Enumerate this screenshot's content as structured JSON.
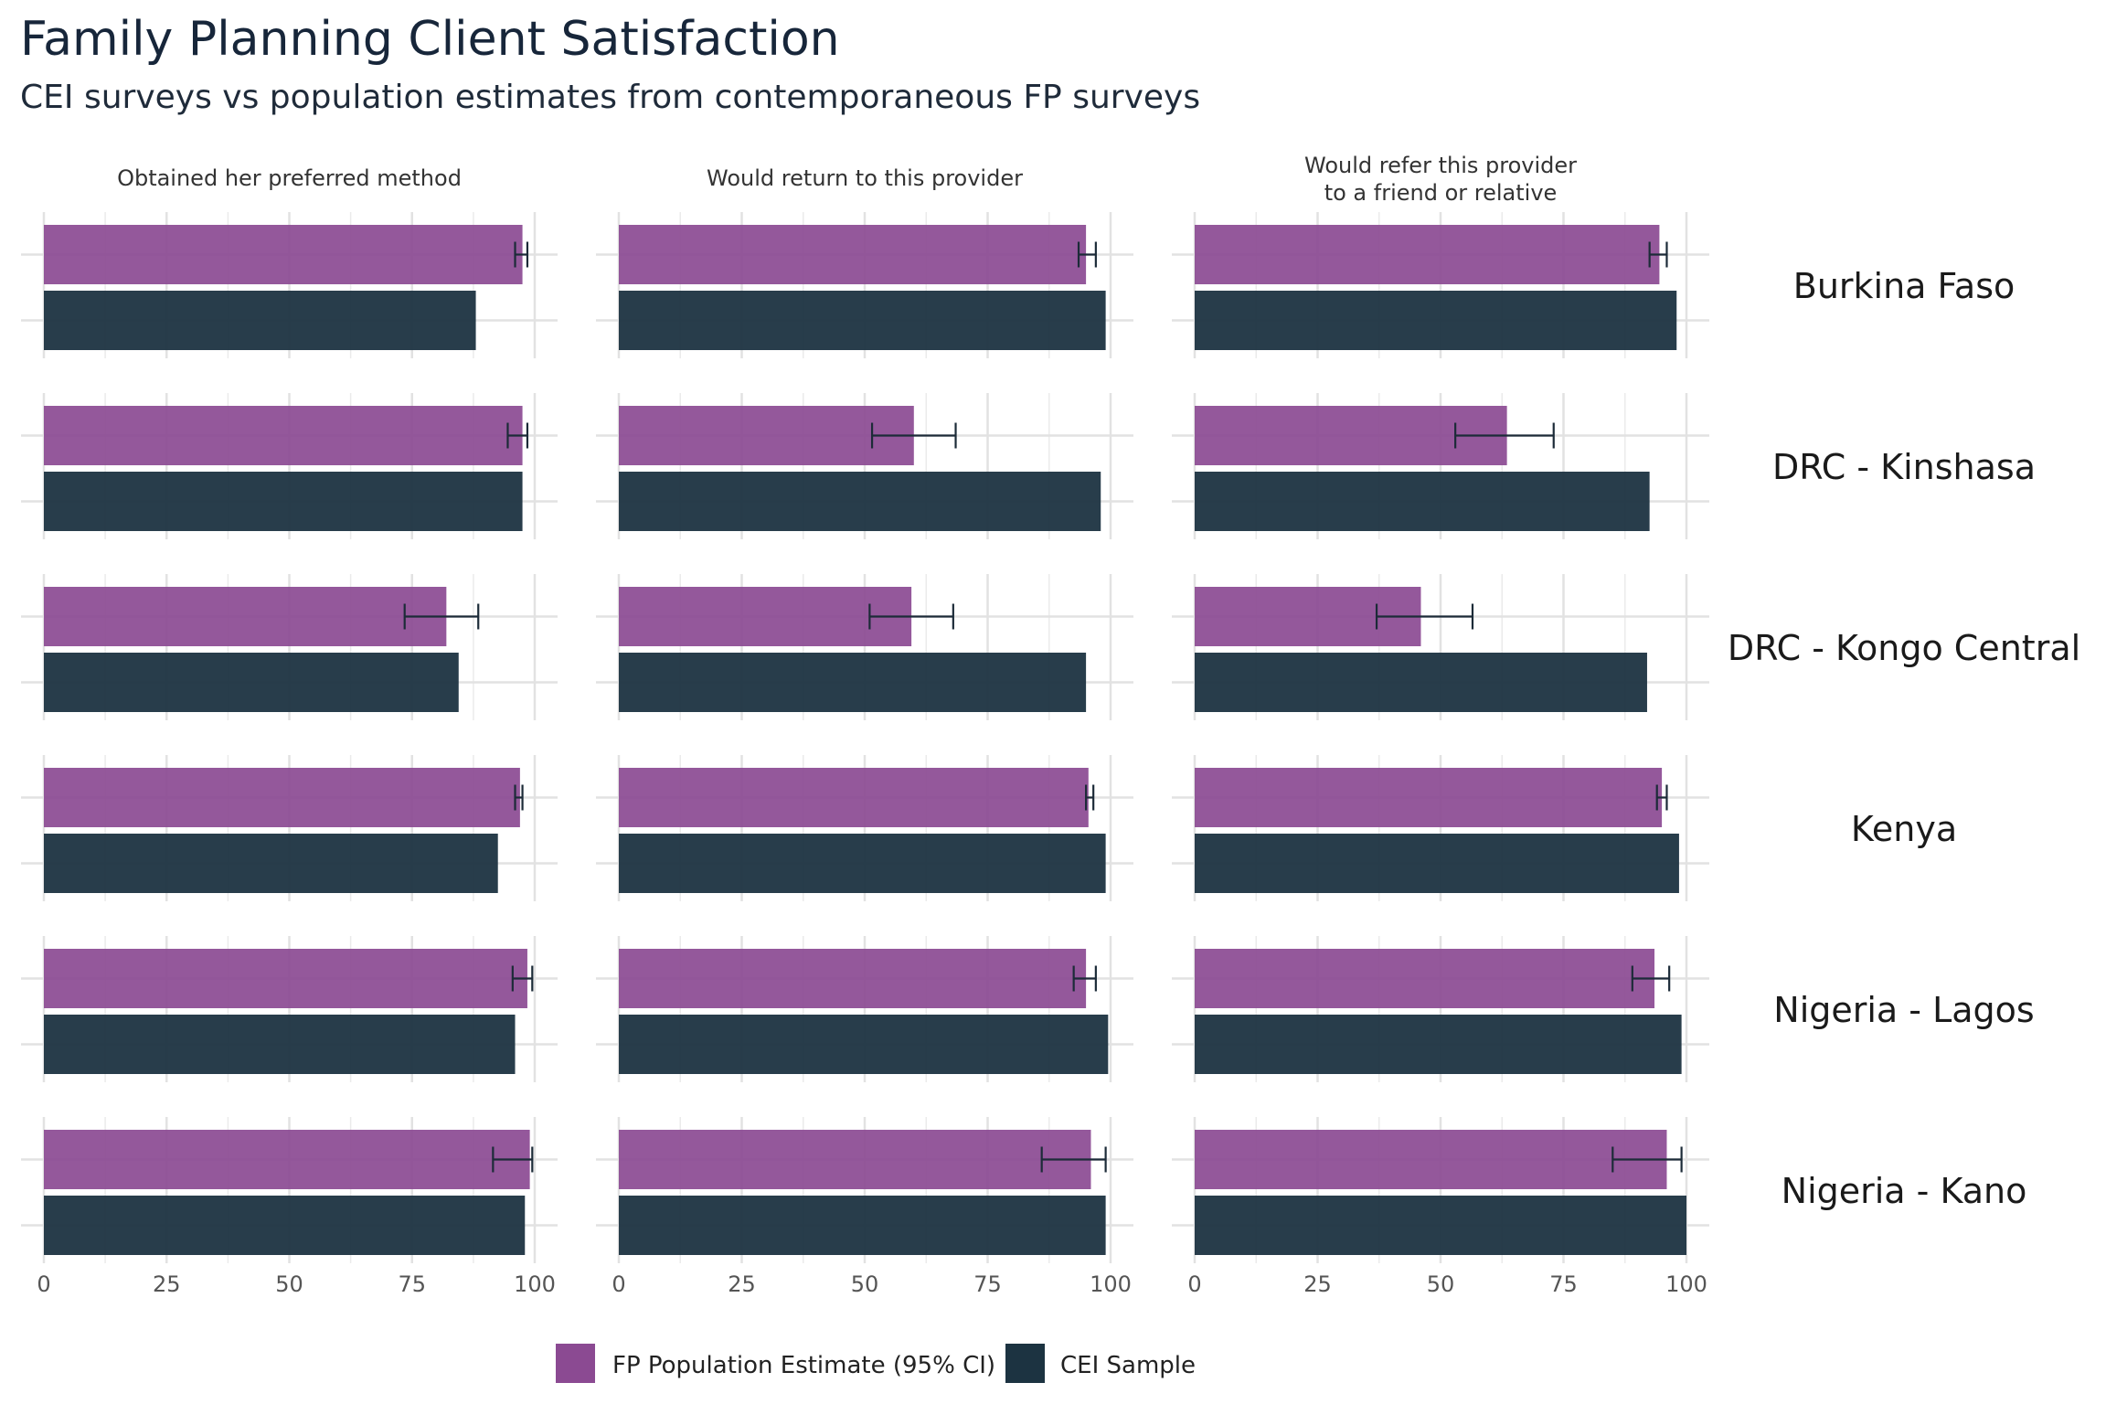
{
  "chart_data": {
    "type": "bar",
    "title": "Family Planning Client Satisfaction",
    "subtitle": "CEI surveys vs population estimates from contemporaneous FP surveys",
    "xlabel": "",
    "ylabel": "",
    "xlim": [
      0,
      100
    ],
    "x_ticks": [
      "0",
      "25",
      "50",
      "75",
      "100"
    ],
    "grid": true,
    "legend_position": "bottom",
    "colors": {
      "estimate": "#8B4A92",
      "sample": "#1C3341",
      "error_bar": "#1C2B38"
    },
    "panels": [
      {
        "label": "Obtained her preferred method",
        "label_lines": [
          "Obtained her preferred method"
        ]
      },
      {
        "label": "Would return to this provider",
        "label_lines": [
          "Would return to this provider"
        ]
      },
      {
        "label": "Would refer this provider to a friend or relative",
        "label_lines": [
          "Would refer this provider",
          "to a friend or relative"
        ]
      }
    ],
    "rows": [
      "Burkina Faso",
      "DRC - Kinshasa",
      "DRC - Kongo Central",
      "Kenya",
      "Nigeria - Lagos",
      "Nigeria - Kano"
    ],
    "series": [
      {
        "name": "FP Population Estimate (95% CI)",
        "values": [
          [
            97.5,
            95,
            94.5
          ],
          [
            97.5,
            60,
            63.5
          ],
          [
            82,
            59.5,
            46
          ],
          [
            97,
            95.5,
            95
          ],
          [
            98.5,
            95,
            93.5
          ],
          [
            99,
            96,
            96
          ]
        ],
        "ci_low": [
          [
            96,
            93.5,
            92.5
          ],
          [
            94.5,
            51.5,
            53
          ],
          [
            73.5,
            51,
            37
          ],
          [
            96,
            95,
            94
          ],
          [
            95.5,
            92.5,
            89
          ],
          [
            91.5,
            86,
            85
          ]
        ],
        "ci_high": [
          [
            98.5,
            97,
            96
          ],
          [
            98.5,
            68.5,
            73
          ],
          [
            88.5,
            68,
            56.5
          ],
          [
            97.5,
            96.5,
            96
          ],
          [
            99.5,
            97,
            96.5
          ],
          [
            99.5,
            99,
            99
          ]
        ]
      },
      {
        "name": "CEI Sample",
        "values": [
          [
            88,
            99,
            98
          ],
          [
            97.5,
            98,
            92.5
          ],
          [
            84.5,
            95,
            92
          ],
          [
            92.5,
            99,
            98.5
          ],
          [
            96,
            99.5,
            99
          ],
          [
            98,
            99,
            100
          ]
        ]
      }
    ]
  }
}
